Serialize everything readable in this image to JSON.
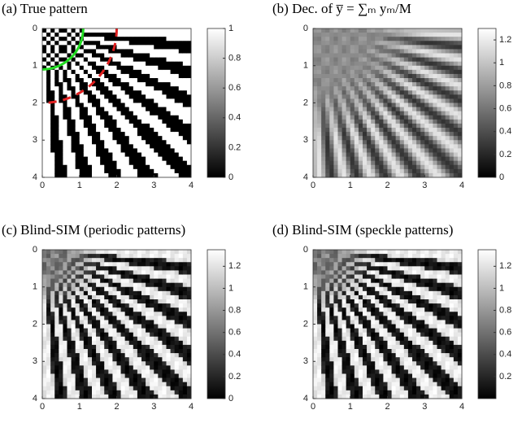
{
  "chart_data": [
    {
      "type": "image",
      "title": "(a) True pattern",
      "xlim": [
        0,
        4
      ],
      "ylim": [
        0,
        4
      ],
      "xticks": [
        0,
        1,
        2,
        3,
        4
      ],
      "yticks": [
        0,
        1,
        2,
        3,
        4
      ],
      "clim": [
        0,
        1
      ],
      "cticks": [
        0,
        0.2,
        0.4,
        0.6,
        0.8,
        1
      ]
    },
    {
      "type": "image",
      "title": "(b) Dec. of y̅ = ∑ₘ yₘ/M",
      "xlim": [
        0,
        4
      ],
      "ylim": [
        0,
        4
      ],
      "xticks": [
        0,
        1,
        2,
        3,
        4
      ],
      "yticks": [
        0,
        1,
        2,
        3,
        4
      ],
      "clim": [
        0,
        1.3
      ],
      "cticks": [
        0,
        0.2,
        0.4,
        0.6,
        0.8,
        1,
        1.2
      ]
    },
    {
      "type": "image",
      "title": "(c) Blind-SIM (periodic patterns)",
      "xlim": [
        0,
        4
      ],
      "ylim": [
        0,
        4
      ],
      "xticks": [
        0,
        1,
        2,
        3,
        4
      ],
      "yticks": [
        0,
        1,
        2,
        3,
        4
      ],
      "clim": [
        0,
        1.35
      ],
      "cticks": [
        0,
        0.2,
        0.4,
        0.6,
        0.8,
        1,
        1.2
      ]
    },
    {
      "type": "image",
      "title": "(d) Blind-SIM (speckle patterns)",
      "xlim": [
        0,
        4
      ],
      "ylim": [
        0,
        4
      ],
      "xticks": [
        0,
        1,
        2,
        3,
        4
      ],
      "yticks": [
        0,
        1,
        2,
        3,
        4
      ],
      "clim": [
        0,
        1.35
      ],
      "cticks": [
        0.2,
        0.4,
        0.6,
        0.8,
        1,
        1.2
      ]
    }
  ]
}
